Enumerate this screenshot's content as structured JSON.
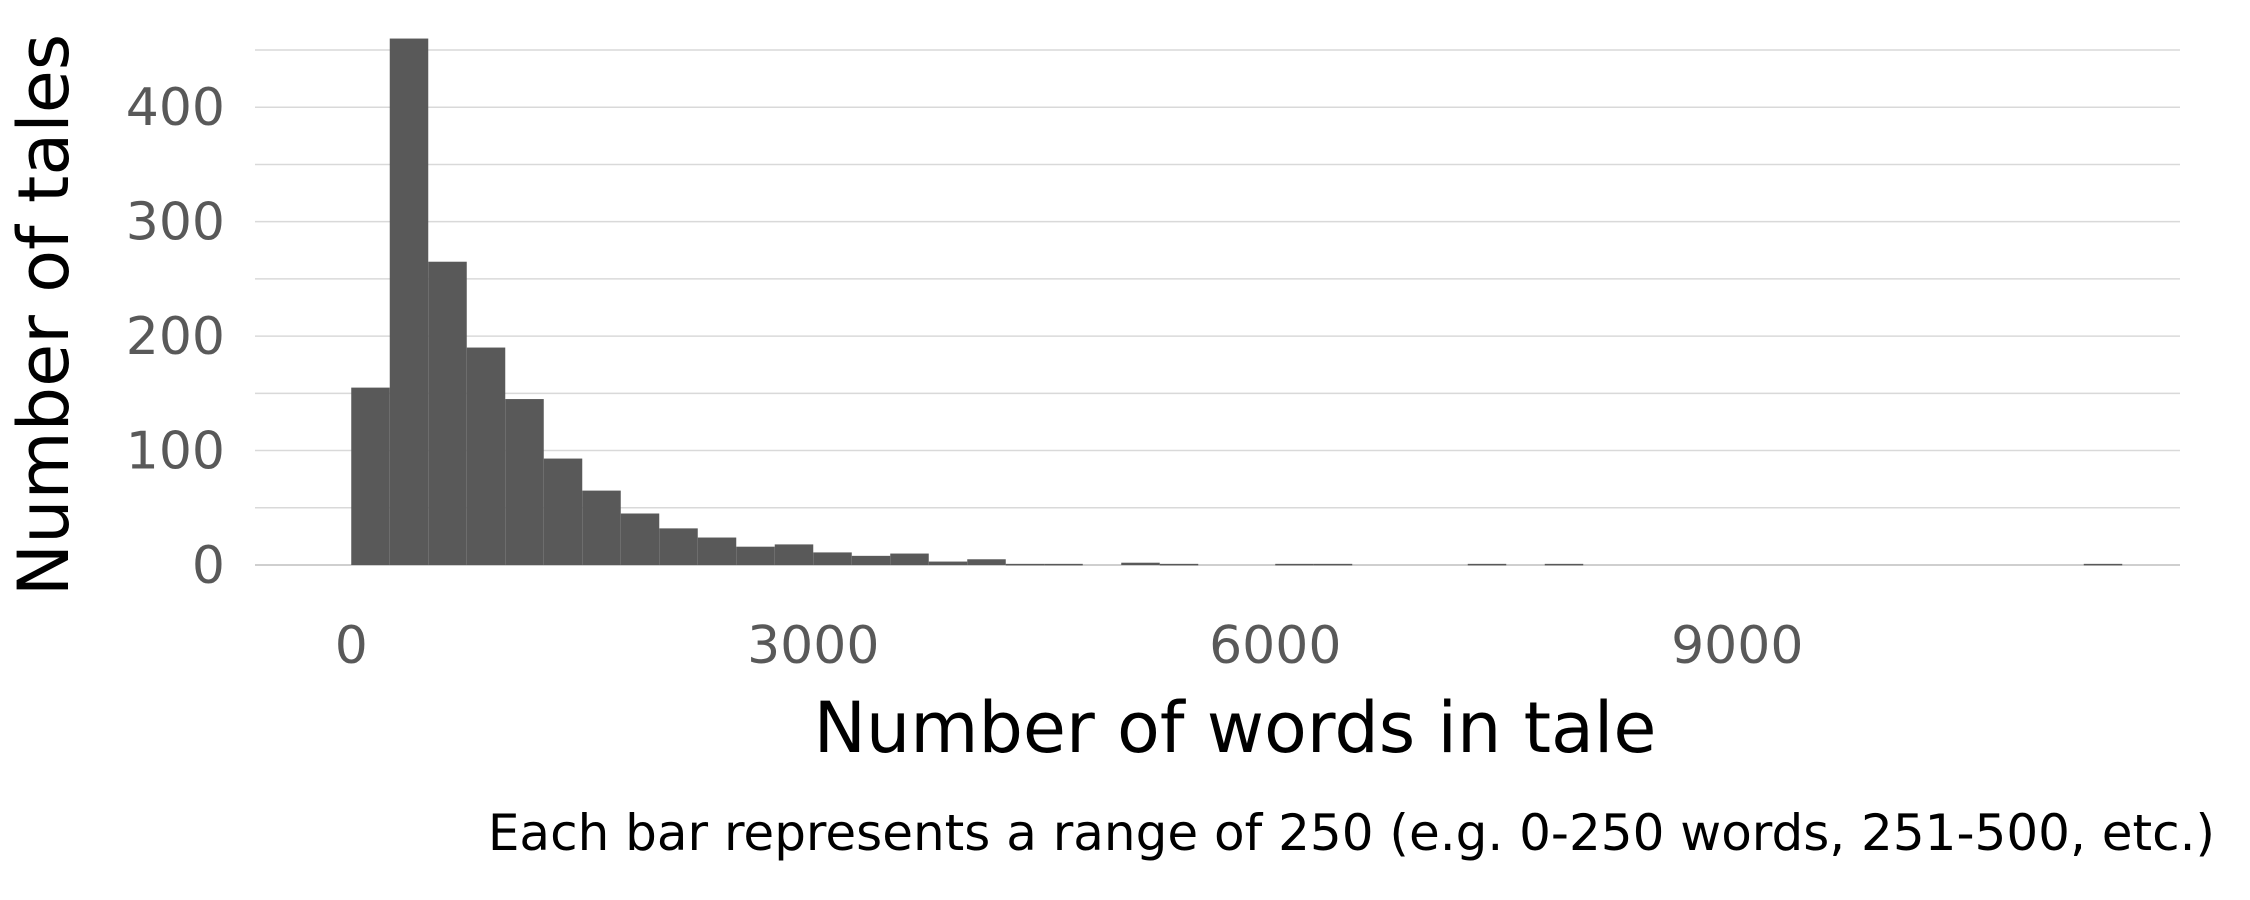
{
  "chart_data": {
    "type": "bar",
    "title": "",
    "xlabel": "Number of words in tale",
    "ylabel": "Number of tales",
    "note": "Each bar represents a range of 250 (e.g. 0-250 words, 251-500, etc.)",
    "bin_width": 250,
    "bin_starts": [
      0,
      250,
      500,
      750,
      1000,
      1250,
      1500,
      1750,
      2000,
      2250,
      2500,
      2750,
      3000,
      3250,
      3500,
      3750,
      4000,
      4250,
      4500,
      4750,
      5000,
      5250,
      5500,
      5750,
      6000,
      6250,
      6500,
      6750,
      7000,
      7250,
      7500,
      7750,
      8000,
      8250,
      8500,
      8750,
      9000,
      9250,
      9500,
      9750,
      10000,
      10250,
      10500,
      10750,
      11000,
      11250
    ],
    "values": [
      155,
      460,
      265,
      190,
      145,
      93,
      65,
      45,
      32,
      24,
      16,
      18,
      11,
      8,
      10,
      3,
      5,
      1,
      1,
      0,
      2,
      1,
      0,
      0,
      1,
      1,
      0,
      0,
      0,
      1,
      0,
      1,
      0,
      0,
      0,
      0,
      0,
      0,
      0,
      0,
      0,
      0,
      0,
      0,
      0,
      1
    ],
    "x_ticks": [
      "0",
      "3000",
      "6000",
      "9000"
    ],
    "x_tick_values": [
      0,
      3000,
      6000,
      9000
    ],
    "y_ticks": [
      "0",
      "100",
      "200",
      "300",
      "400"
    ],
    "y_tick_values": [
      0,
      100,
      200,
      300,
      400
    ],
    "xlim": [
      -625,
      11875
    ],
    "ylim": [
      0,
      450
    ],
    "grid": true,
    "colors": {
      "bar": "#595959",
      "grid": "#d9d9d9",
      "tick_text": "#595959"
    }
  }
}
